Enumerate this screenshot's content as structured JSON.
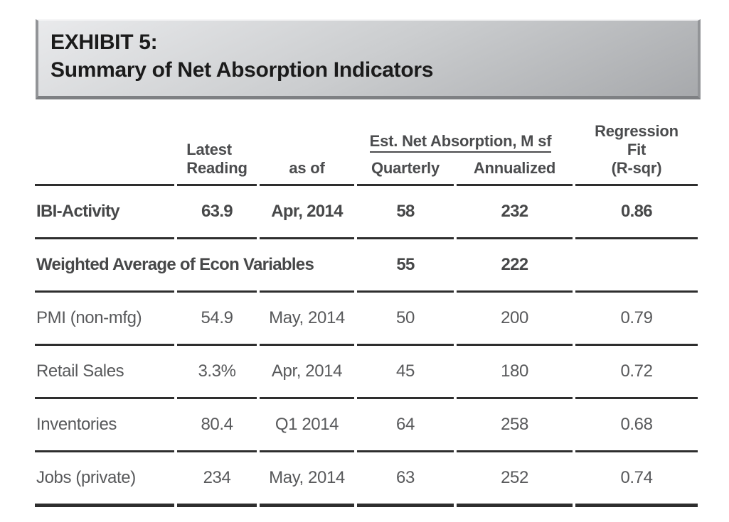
{
  "exhibit": {
    "title_line1": "EXHIBIT 5:",
    "title_line2": "Summary of Net Absorption Indicators"
  },
  "table": {
    "header": {
      "latest_line1": "Latest",
      "latest_line2": "Reading",
      "as_of": "as of",
      "est_group": "Est. Net Absorption, M sf",
      "quarterly": "Quarterly",
      "annualized": "Annualized",
      "regression_line1": "Regression",
      "regression_line2": "Fit",
      "regression_line3": "(R-sqr)"
    },
    "rows": [
      {
        "indicator": "IBI-Activity",
        "latest": "63.9",
        "as_of": "Apr, 2014",
        "quarterly": "58",
        "annualized": "232",
        "rsqr": "0.86",
        "bold": true
      },
      {
        "indicator": "Weighted Average of Econ Variables",
        "latest": "",
        "as_of": "",
        "quarterly": "55",
        "annualized": "222",
        "rsqr": "",
        "bold": true
      },
      {
        "indicator": "PMI (non-mfg)",
        "latest": "54.9",
        "as_of": "May, 2014",
        "quarterly": "50",
        "annualized": "200",
        "rsqr": "0.79",
        "bold": false
      },
      {
        "indicator": "Retail Sales",
        "latest": "3.3%",
        "as_of": "Apr, 2014",
        "quarterly": "45",
        "annualized": "180",
        "rsqr": "0.72",
        "bold": false
      },
      {
        "indicator": "Inventories",
        "latest": "80.4",
        "as_of": "Q1 2014",
        "quarterly": "64",
        "annualized": "258",
        "rsqr": "0.68",
        "bold": false
      },
      {
        "indicator": "Jobs (private)",
        "latest": "234",
        "as_of": "May, 2014",
        "quarterly": "63",
        "annualized": "252",
        "rsqr": "0.74",
        "bold": false
      }
    ]
  },
  "colors": {
    "banner_gradient_start": "#e9eaec",
    "banner_gradient_end": "#a7a9ac",
    "title_text": "#1b1b1b",
    "rule": "#2e2e2e",
    "text_regular": "#58595b",
    "text_bold": "#474849"
  }
}
